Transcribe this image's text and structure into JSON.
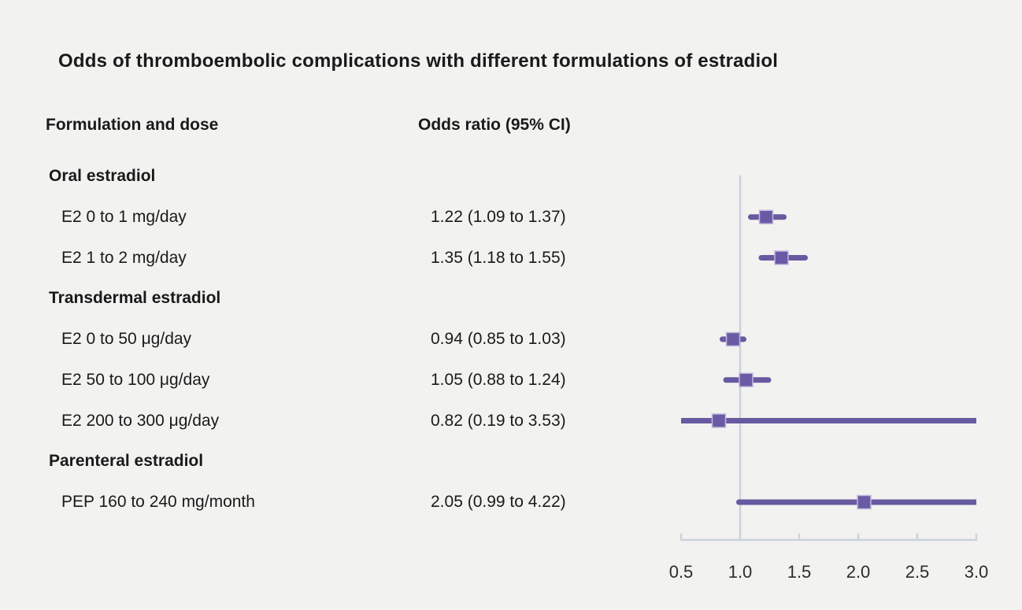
{
  "title": "Odds of thromboembolic complications with different formulations of estradiol",
  "columns": {
    "formulation": "Formulation and dose",
    "odds_ratio": "Odds ratio (95% CI)"
  },
  "colors": {
    "background": "#f2f2f0",
    "ci_line": "#675aa1",
    "marker_fill": "#6a5aa5",
    "marker_border": "#c2b8da",
    "axis_line": "#ccd1db",
    "tick_text": "#2b2b2b",
    "text": "#1a1a1a"
  },
  "chart_data": {
    "type": "forest",
    "title": "Odds of thromboembolic complications with different formulations of estradiol",
    "xlabel": "",
    "legend": "none",
    "axis": {
      "min": 0.5,
      "max": 3.0,
      "reference_line": 1.0,
      "ticks": [
        0.5,
        1.0,
        1.5,
        2.0,
        2.5,
        3.0
      ],
      "tick_labels": [
        "0.5",
        "1.0",
        "1.5",
        "2.0",
        "2.5",
        "3.0"
      ]
    },
    "rows": [
      {
        "type": "section",
        "label": "Oral estradiol"
      },
      {
        "type": "item",
        "label": "E2 0 to 1 mg/day",
        "value_text": "1.22 (1.09 to 1.37)",
        "estimate": 1.22,
        "ci_low": 1.09,
        "ci_high": 1.37
      },
      {
        "type": "item",
        "label": "E2 1 to 2 mg/day",
        "value_text": "1.35 (1.18 to 1.55)",
        "estimate": 1.35,
        "ci_low": 1.18,
        "ci_high": 1.55
      },
      {
        "type": "section",
        "label": "Transdermal estradiol"
      },
      {
        "type": "item",
        "label": "E2 0 to 50 μg/day",
        "value_text": "0.94 (0.85 to 1.03)",
        "estimate": 0.94,
        "ci_low": 0.85,
        "ci_high": 1.03
      },
      {
        "type": "item",
        "label": "E2 50 to 100 μg/day",
        "value_text": "1.05 (0.88 to 1.24)",
        "estimate": 1.05,
        "ci_low": 0.88,
        "ci_high": 1.24
      },
      {
        "type": "item",
        "label": "E2 200 to 300 μg/day",
        "value_text": "0.82 (0.19 to 3.53)",
        "estimate": 0.82,
        "ci_low": 0.19,
        "ci_high": 3.53
      },
      {
        "type": "section",
        "label": "Parenteral estradiol"
      },
      {
        "type": "item",
        "label": "PEP 160 to 240 mg/month",
        "value_text": "2.05 (0.99 to 4.22)",
        "estimate": 2.05,
        "ci_low": 0.99,
        "ci_high": 4.22
      }
    ]
  }
}
